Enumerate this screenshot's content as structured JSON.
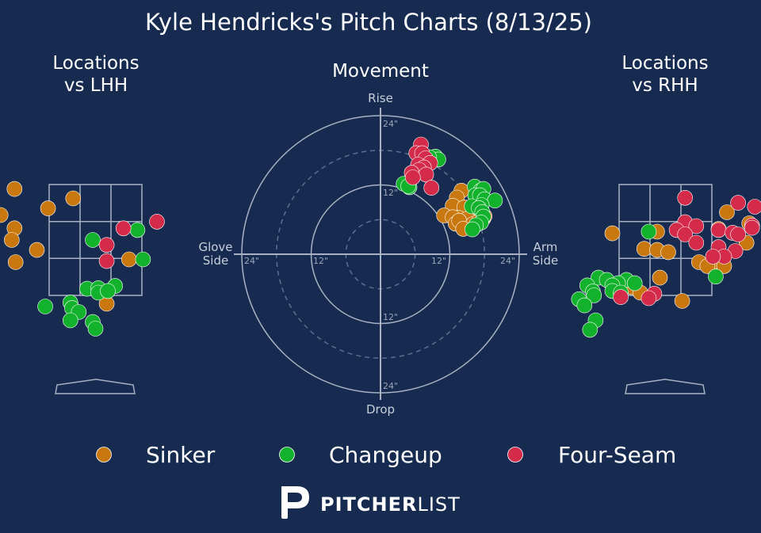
{
  "title": "Kyle Hendricks's Pitch Charts (8/13/25)",
  "colors": {
    "background": "#162b4f",
    "Sinker": "#c8780e",
    "Changeup": "#13b22c",
    "Four-Seam": "#d42b4a"
  },
  "chart_data": [
    {
      "type": "scatter",
      "title": "Locations\nvs LHH",
      "title_lines": [
        "Locations",
        "vs LHH"
      ],
      "series": [
        {
          "name": "Sinker",
          "points": [
            [
              -1.45,
              3.42
            ],
            [
              -0.4,
              3.25
            ],
            [
              -0.85,
              3.07
            ],
            [
              -1.7,
              2.95
            ],
            [
              -1.9,
              2.77
            ],
            [
              -1.45,
              2.71
            ],
            [
              -1.5,
              2.5
            ],
            [
              -1.05,
              2.32
            ],
            [
              -1.43,
              2.1
            ],
            [
              0.6,
              2.15
            ],
            [
              0.2,
              1.35
            ]
          ]
        },
        {
          "name": "Changeup",
          "points": [
            [
              0.75,
              2.68
            ],
            [
              -0.05,
              2.5
            ],
            [
              0.85,
              2.15
            ],
            [
              0.35,
              1.67
            ],
            [
              -0.15,
              1.62
            ],
            [
              0.05,
              1.63
            ],
            [
              0.05,
              1.55
            ],
            [
              0.22,
              1.58
            ],
            [
              -0.9,
              1.3
            ],
            [
              -0.45,
              1.37
            ],
            [
              -0.42,
              1.27
            ],
            [
              -0.3,
              1.2
            ],
            [
              -0.45,
              1.05
            ],
            [
              -0.05,
              1.02
            ],
            [
              0.0,
              0.9
            ]
          ]
        },
        {
          "name": "Four-Seam",
          "points": [
            [
              1.1,
              2.83
            ],
            [
              0.5,
              2.71
            ],
            [
              0.2,
              2.41
            ],
            [
              0.2,
              2.12
            ]
          ]
        }
      ]
    },
    {
      "type": "scatter",
      "title": "Movement",
      "axis_labels": {
        "top": "Rise",
        "bottom": "Drop",
        "left": "Glove\nSide",
        "right": "Arm\nSide"
      },
      "left_label_lines": [
        "Glove",
        "Side"
      ],
      "right_label_lines": [
        "Arm",
        "Side"
      ],
      "ring_tick_labels": [
        "24\"",
        "12\"",
        "12\"",
        "24\"",
        "24\"",
        "12\"",
        "12\"",
        "24\""
      ],
      "rings": [
        6,
        12,
        18,
        24
      ],
      "lim": [
        -24,
        24
      ],
      "series": [
        {
          "name": "Sinker",
          "points": [
            [
              14,
              11
            ],
            [
              13.2,
              9.8
            ],
            [
              17.5,
              8.8
            ],
            [
              12.5,
              8.4
            ],
            [
              14.5,
              8.1
            ],
            [
              16,
              7.2
            ],
            [
              16.5,
              6.8
            ],
            [
              13.5,
              6.3
            ],
            [
              17,
              5.8
            ],
            [
              11,
              6.7
            ],
            [
              12.5,
              6.4
            ],
            [
              15,
              6.1
            ],
            [
              17.8,
              6.2
            ],
            [
              18,
              6.6
            ],
            [
              13,
              5.3
            ],
            [
              14.8,
              4.8
            ],
            [
              13.6,
              5.8
            ],
            [
              16,
              5.2
            ],
            [
              17,
              5.7
            ],
            [
              14.3,
              4.4
            ]
          ]
        },
        {
          "name": "Changeup",
          "points": [
            [
              9.5,
              16.9
            ],
            [
              10,
              16.4
            ],
            [
              8.4,
              16.8
            ],
            [
              16.3,
              11.7
            ],
            [
              17.3,
              11
            ],
            [
              17.8,
              11.3
            ],
            [
              16.4,
              10.2
            ],
            [
              17.2,
              10.2
            ],
            [
              18,
              9.5
            ],
            [
              19.8,
              9.3
            ],
            [
              17.5,
              8.5
            ],
            [
              15.8,
              8.3
            ],
            [
              17,
              8
            ],
            [
              17.6,
              7.3
            ],
            [
              17.8,
              6.5
            ],
            [
              17.4,
              5.5
            ],
            [
              16.5,
              5
            ],
            [
              15.9,
              4.3
            ],
            [
              4,
              12.2
            ],
            [
              5,
              11.6
            ],
            [
              4.8,
              11.8
            ]
          ]
        },
        {
          "name": "Four-Seam",
          "points": [
            [
              7,
              19
            ],
            [
              6.2,
              17.5
            ],
            [
              7.2,
              17.5
            ],
            [
              7.8,
              16.6
            ],
            [
              8.6,
              15.8
            ],
            [
              6.5,
              15.5
            ],
            [
              7.5,
              15
            ],
            [
              6.7,
              14.6
            ],
            [
              5.4,
              14.1
            ],
            [
              7.9,
              13.8
            ],
            [
              5.6,
              13.3
            ],
            [
              8.8,
              11.5
            ]
          ]
        }
      ]
    },
    {
      "type": "scatter",
      "title": "Locations\nvs RHH",
      "title_lines": [
        "Locations",
        "vs RHH"
      ],
      "series": [
        {
          "name": "Sinker",
          "points": [
            [
              1.1,
              3
            ],
            [
              1.5,
              2.8
            ],
            [
              0.95,
              2.7
            ],
            [
              1.45,
              2.45
            ],
            [
              -0.15,
              2.65
            ],
            [
              -0.95,
              2.62
            ],
            [
              -0.38,
              2.34
            ],
            [
              -0.15,
              2.32
            ],
            [
              0.05,
              2.28
            ],
            [
              0.6,
              2.1
            ],
            [
              0.85,
              2.1
            ],
            [
              0.75,
              2.03
            ],
            [
              1.05,
              2.03
            ],
            [
              -0.1,
              1.82
            ],
            [
              -0.6,
              1.65
            ],
            [
              -0.45,
              1.55
            ],
            [
              0.3,
              1.4
            ]
          ]
        },
        {
          "name": "Changeup",
          "points": [
            [
              -0.3,
              2.65
            ],
            [
              0.9,
              1.84
            ],
            [
              -1.2,
              1.82
            ],
            [
              -1.05,
              1.78
            ],
            [
              -0.7,
              1.78
            ],
            [
              -0.85,
              1.72
            ],
            [
              -0.55,
              1.72
            ],
            [
              -1.4,
              1.68
            ],
            [
              -0.95,
              1.68
            ],
            [
              -1.3,
              1.57
            ],
            [
              -0.95,
              1.58
            ],
            [
              -0.8,
              1.55
            ],
            [
              -1.28,
              1.5
            ],
            [
              -1.55,
              1.43
            ],
            [
              -1.45,
              1.32
            ],
            [
              -1.25,
              1.05
            ],
            [
              -1.35,
              0.88
            ]
          ]
        },
        {
          "name": "Four-Seam",
          "points": [
            [
              0.35,
              3.26
            ],
            [
              1.3,
              3.17
            ],
            [
              1.6,
              3.1
            ],
            [
              0.35,
              2.82
            ],
            [
              1.55,
              2.76
            ],
            [
              0.55,
              2.75
            ],
            [
              0.2,
              2.68
            ],
            [
              0.35,
              2.6
            ],
            [
              0.95,
              2.68
            ],
            [
              1.2,
              2.63
            ],
            [
              1.55,
              2.72
            ],
            [
              1.3,
              2.6
            ],
            [
              0.55,
              2.45
            ],
            [
              0.95,
              2.37
            ],
            [
              1.25,
              2.3
            ],
            [
              1.05,
              2.2
            ],
            [
              0.85,
              2.2
            ],
            [
              -0.2,
              1.53
            ],
            [
              -0.8,
              1.47
            ],
            [
              -0.3,
              1.45
            ]
          ]
        }
      ]
    }
  ],
  "legend": [
    {
      "name": "Sinker",
      "label": "Sinker"
    },
    {
      "name": "Changeup",
      "label": "Changeup"
    },
    {
      "name": "Four-Seam",
      "label": "Four-Seam"
    }
  ],
  "brand": {
    "bold": "PITCHER",
    "light": "LIST"
  }
}
